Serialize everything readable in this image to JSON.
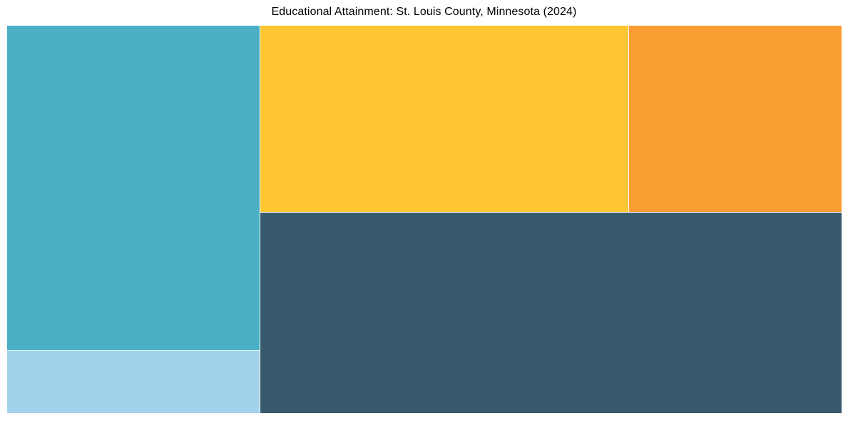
{
  "chart_data": {
    "type": "treemap",
    "title": "Educational Attainment: St. Louis County, Minnesota (2024)",
    "subtitle": "",
    "legend": "none",
    "axes": "none",
    "labels_visible": false,
    "background_color": "#ffffff",
    "title_color": "#000000",
    "tiles": [
      {
        "id": "teal-large-left",
        "color": "#4BB0C5",
        "area_pct_of_total": 25.4,
        "x_pct": 0,
        "y_pct": 0,
        "w_pct": 30.2564,
        "h_pct": 83.7938
      },
      {
        "id": "light-blue-bottom-left",
        "color": "#A3D3EA",
        "area_pct_of_total": 4.8,
        "x_pct": 0,
        "y_pct": 83.9779,
        "w_pct": 30.2564,
        "h_pct": 16.0221
      },
      {
        "id": "yellow-top-middle",
        "color": "#FFC634",
        "area_pct_of_total": 21.2,
        "x_pct": 30.3419,
        "y_pct": 0,
        "w_pct": 44.1026,
        "h_pct": 48.0663
      },
      {
        "id": "orange-top-right",
        "color": "#FA9D33",
        "area_pct_of_total": 12.2,
        "x_pct": 74.5299,
        "y_pct": 0,
        "w_pct": 25.4701,
        "h_pct": 48.0663
      },
      {
        "id": "dark-slate-bottom-right",
        "color": "#36596B",
        "area_pct_of_total": 36.4,
        "x_pct": 30.3419,
        "y_pct": 48.2505,
        "w_pct": 69.6581,
        "h_pct": 51.7495
      }
    ]
  }
}
